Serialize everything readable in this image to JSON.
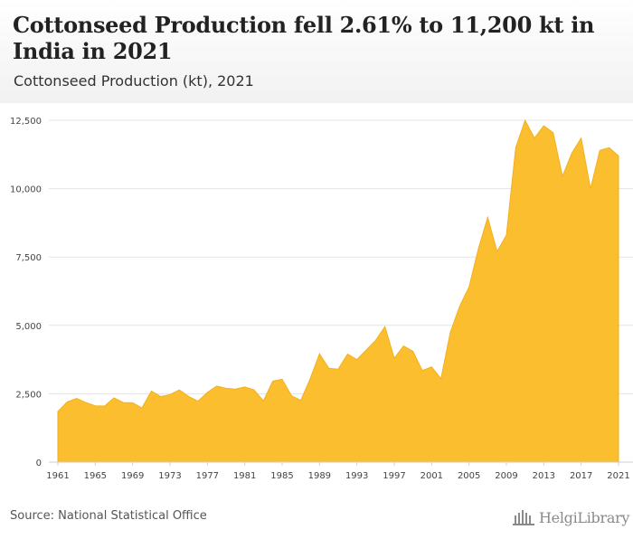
{
  "header": {
    "title": "Cottonseed Production fell 2.61% to 11,200 kt in India in 2021",
    "subtitle": "Cottonseed Production (kt), 2021"
  },
  "footer": {
    "source": "Source: National Statistical Office",
    "logo_text": "HelgiLibrary"
  },
  "colors": {
    "area_fill": "#fbbe2e",
    "area_stroke": "#f2b01e",
    "grid": "#e3e3e3",
    "axis_text": "#444444"
  },
  "chart_data": {
    "type": "area",
    "xlabel": "",
    "ylabel": "",
    "ylim": [
      0,
      12600
    ],
    "xlim": [
      1961,
      2021
    ],
    "grid": true,
    "legend": "none",
    "y_ticks": [
      0,
      2500,
      5000,
      7500,
      10000,
      12500
    ],
    "y_tick_labels": [
      "0",
      "2,500",
      "5,000",
      "7,500",
      "10,000",
      "12,500"
    ],
    "x_ticks": [
      1961,
      1965,
      1969,
      1973,
      1977,
      1981,
      1985,
      1989,
      1993,
      1997,
      2001,
      2005,
      2009,
      2013,
      2017,
      2021
    ],
    "x_tick_labels": [
      "1961",
      "1965",
      "1969",
      "1973",
      "1977",
      "1981",
      "1985",
      "1989",
      "1993",
      "1997",
      "2001",
      "2005",
      "2009",
      "2013",
      "2017",
      "2021"
    ],
    "series": [
      {
        "x": [
          1961,
          1962,
          1963,
          1964,
          1965,
          1966,
          1967,
          1968,
          1969,
          1970,
          1971,
          1972,
          1973,
          1974,
          1975,
          1976,
          1977,
          1978,
          1979,
          1980,
          1981,
          1982,
          1983,
          1984,
          1985,
          1986,
          1987,
          1988,
          1989,
          1990,
          1991,
          1992,
          1993,
          1994,
          1995,
          1996,
          1997,
          1998,
          1999,
          2000,
          2001,
          2002,
          2003,
          2004,
          2005,
          2006,
          2007,
          2008,
          2009,
          2010,
          2011,
          2012,
          2013,
          2014,
          2015,
          2016,
          2017,
          2018,
          2019,
          2020,
          2021
        ],
        "values": [
          1850,
          2200,
          2330,
          2180,
          2060,
          2050,
          2350,
          2180,
          2170,
          1980,
          2600,
          2400,
          2470,
          2640,
          2400,
          2230,
          2550,
          2780,
          2700,
          2670,
          2750,
          2640,
          2240,
          2960,
          3030,
          2430,
          2260,
          3050,
          3960,
          3430,
          3400,
          3950,
          3750,
          4100,
          4450,
          4950,
          3800,
          4250,
          4050,
          3350,
          3480,
          3050,
          4750,
          5700,
          6400,
          7800,
          8950,
          7700,
          8300,
          11500,
          12500,
          11850,
          12300,
          12050,
          10450,
          11300,
          11850,
          10000,
          11400,
          11500,
          11200
        ]
      }
    ]
  }
}
